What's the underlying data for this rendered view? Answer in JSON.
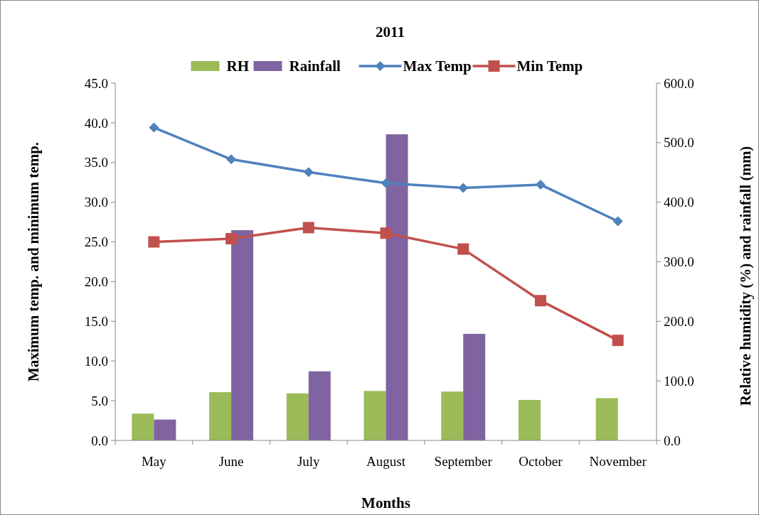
{
  "chart_data": {
    "type": "bar",
    "title": "2011",
    "xlabel": "Months",
    "ylabel": "Maximum temp. and minimum temp.",
    "y2label": "Relative humidity (%) and rainfall (mm)",
    "categories": [
      "May",
      "June",
      "July",
      "August",
      "September",
      "October",
      "November"
    ],
    "series": [
      {
        "name": "RH",
        "axis": "y2",
        "color": "#9bbb59",
        "values": [
          45,
          81,
          79,
          83,
          82,
          68,
          71
        ]
      },
      {
        "name": "Rainfall",
        "axis": "y2",
        "color": "#8064a2",
        "values": [
          35,
          353,
          116,
          514,
          179,
          0,
          0
        ]
      },
      {
        "name": "Max Temp",
        "type": "line",
        "color": "#4f81bd",
        "marker": "diamond",
        "values": [
          39.4,
          35.4,
          33.8,
          32.4,
          31.8,
          32.2,
          27.6
        ]
      },
      {
        "name": "Min Temp",
        "type": "line",
        "color": "#c0504d",
        "marker": "square",
        "values": [
          25.0,
          25.4,
          26.8,
          26.1,
          24.1,
          17.6,
          12.6
        ]
      }
    ],
    "ylim": [
      0,
      45
    ],
    "yticks": [
      {
        "value": 0,
        "label": "0.0"
      },
      {
        "value": 5,
        "label": "5.0"
      },
      {
        "value": 10,
        "label": "10.0"
      },
      {
        "value": 15,
        "label": "15.0"
      },
      {
        "value": 20,
        "label": "20.0"
      },
      {
        "value": 25,
        "label": "25.0"
      },
      {
        "value": 30,
        "label": "30.0"
      },
      {
        "value": 35,
        "label": "35.0"
      },
      {
        "value": 40,
        "label": "40.0"
      },
      {
        "value": 45,
        "label": "45.0"
      }
    ],
    "y2lim": [
      0,
      600
    ],
    "y2ticks": [
      {
        "value": 0,
        "label": "0.0"
      },
      {
        "value": 100,
        "label": "100.0"
      },
      {
        "value": 200,
        "label": "200.0"
      },
      {
        "value": 300,
        "label": "300.0"
      },
      {
        "value": 400,
        "label": "400.0"
      },
      {
        "value": 500,
        "label": "500.0"
      },
      {
        "value": 600,
        "label": "600.0"
      }
    ],
    "legend": "top",
    "grid": false,
    "line_style": "solid"
  }
}
